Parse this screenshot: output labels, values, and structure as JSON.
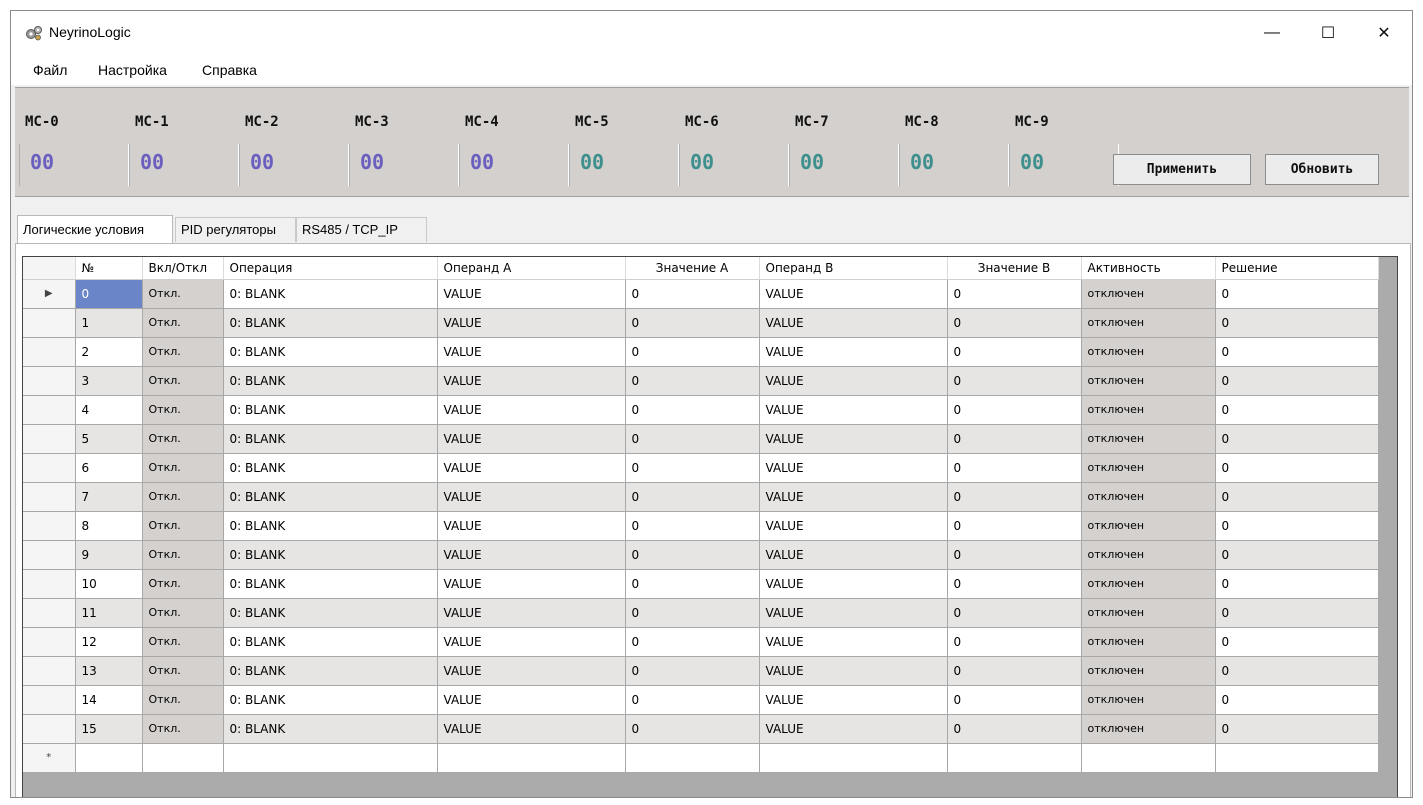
{
  "window": {
    "title": "NeyrinoLogic",
    "icon": "gears-icon",
    "controls": {
      "minimize": "—",
      "maximize": "☐",
      "close": "✕"
    }
  },
  "menu": [
    "Файл",
    "Настройка",
    "Справка"
  ],
  "mc_panel": {
    "labels": [
      "MC-0",
      "MC-1",
      "MC-2",
      "MC-3",
      "MC-4",
      "MC-5",
      "MC-6",
      "MC-7",
      "MC-8",
      "MC-9"
    ],
    "values": [
      "00",
      "00",
      "00",
      "00",
      "00",
      "00",
      "00",
      "00",
      "00",
      "00"
    ],
    "colors": {
      "violet": "#6a5fbf",
      "teal": "#3f8f8e"
    },
    "apply_label": "Применить",
    "refresh_label": "Обновить"
  },
  "tabs": [
    "Логические условия",
    "PID регуляторы",
    "RS485 / TCP_IP"
  ],
  "grid": {
    "columns": [
      "№",
      "Вкл/Откл",
      "Операция",
      "Операнд A",
      "Значение A",
      "Операнд B",
      "Значение B",
      "Активность",
      "Решение"
    ],
    "row_selector": "▶",
    "new_row_marker": "*",
    "rows": [
      [
        "0",
        "Откл.",
        "0: BLANK",
        "VALUE",
        "0",
        "VALUE",
        "0",
        "отключен",
        "0"
      ],
      [
        "1",
        "Откл.",
        "0: BLANK",
        "VALUE",
        "0",
        "VALUE",
        "0",
        "отключен",
        "0"
      ],
      [
        "2",
        "Откл.",
        "0: BLANK",
        "VALUE",
        "0",
        "VALUE",
        "0",
        "отключен",
        "0"
      ],
      [
        "3",
        "Откл.",
        "0: BLANK",
        "VALUE",
        "0",
        "VALUE",
        "0",
        "отключен",
        "0"
      ],
      [
        "4",
        "Откл.",
        "0: BLANK",
        "VALUE",
        "0",
        "VALUE",
        "0",
        "отключен",
        "0"
      ],
      [
        "5",
        "Откл.",
        "0: BLANK",
        "VALUE",
        "0",
        "VALUE",
        "0",
        "отключен",
        "0"
      ],
      [
        "6",
        "Откл.",
        "0: BLANK",
        "VALUE",
        "0",
        "VALUE",
        "0",
        "отключен",
        "0"
      ],
      [
        "7",
        "Откл.",
        "0: BLANK",
        "VALUE",
        "0",
        "VALUE",
        "0",
        "отключен",
        "0"
      ],
      [
        "8",
        "Откл.",
        "0: BLANK",
        "VALUE",
        "0",
        "VALUE",
        "0",
        "отключен",
        "0"
      ],
      [
        "9",
        "Откл.",
        "0: BLANK",
        "VALUE",
        "0",
        "VALUE",
        "0",
        "отключен",
        "0"
      ],
      [
        "10",
        "Откл.",
        "0: BLANK",
        "VALUE",
        "0",
        "VALUE",
        "0",
        "отключен",
        "0"
      ],
      [
        "11",
        "Откл.",
        "0: BLANK",
        "VALUE",
        "0",
        "VALUE",
        "0",
        "отключен",
        "0"
      ],
      [
        "12",
        "Откл.",
        "0: BLANK",
        "VALUE",
        "0",
        "VALUE",
        "0",
        "отключен",
        "0"
      ],
      [
        "13",
        "Откл.",
        "0: BLANK",
        "VALUE",
        "0",
        "VALUE",
        "0",
        "отключен",
        "0"
      ],
      [
        "14",
        "Откл.",
        "0: BLANK",
        "VALUE",
        "0",
        "VALUE",
        "0",
        "отключен",
        "0"
      ],
      [
        "15",
        "Откл.",
        "0: BLANK",
        "VALUE",
        "0",
        "VALUE",
        "0",
        "отключен",
        "0"
      ]
    ]
  }
}
